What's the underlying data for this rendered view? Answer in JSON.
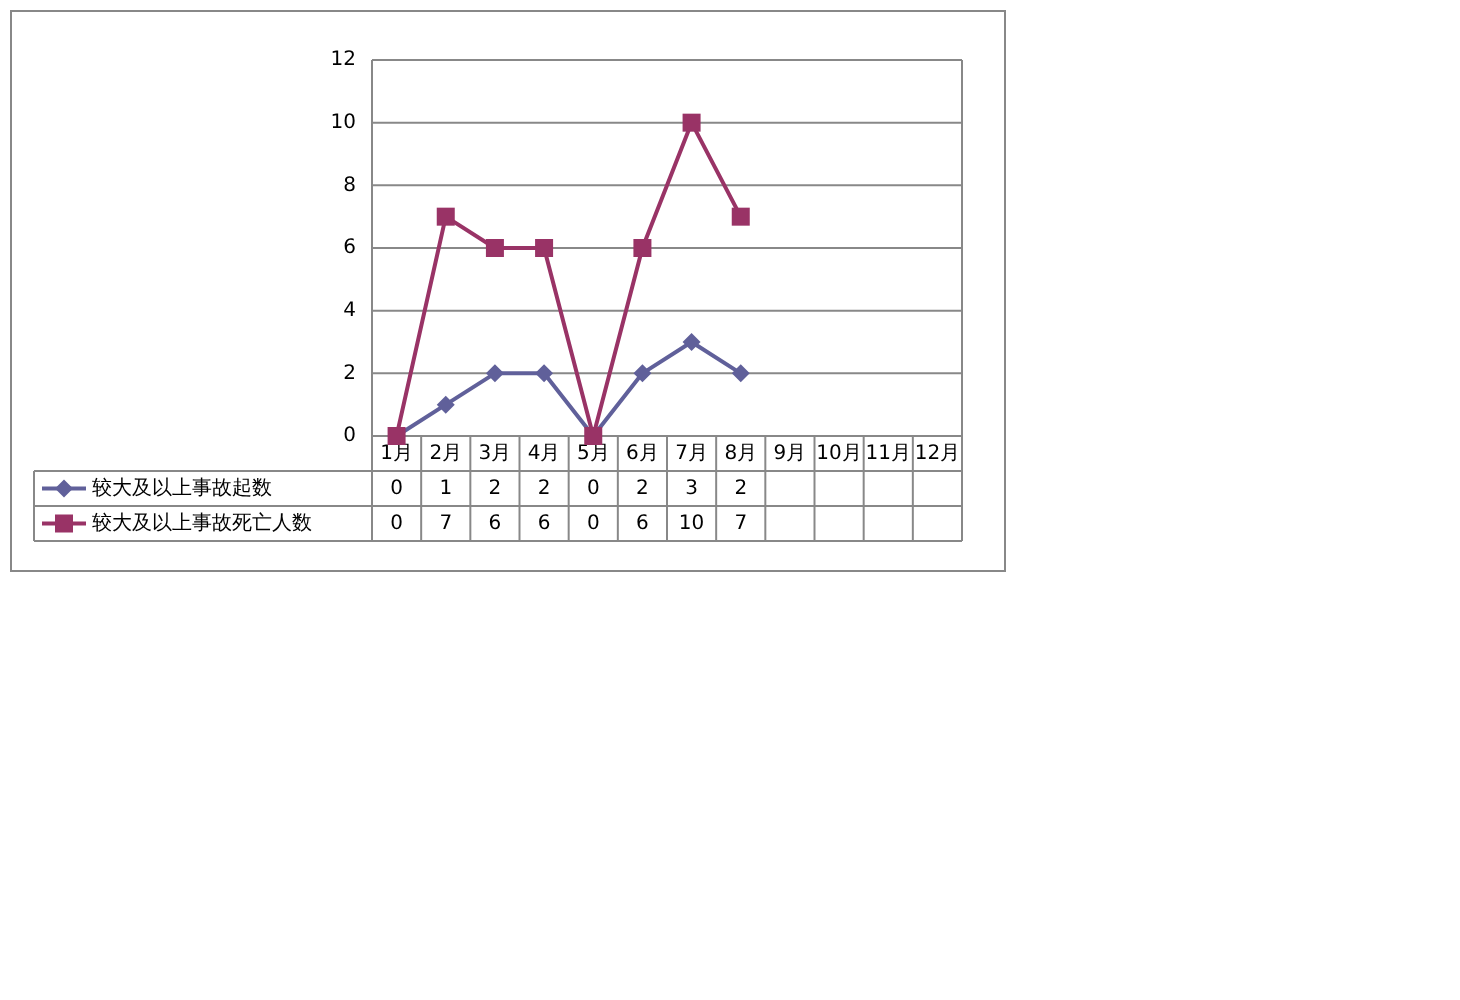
{
  "chart_data": {
    "type": "line",
    "categories": [
      "1月",
      "2月",
      "3月",
      "4月",
      "5月",
      "6月",
      "7月",
      "8月",
      "9月",
      "10月",
      "11月",
      "12月"
    ],
    "series": [
      {
        "name": "较大及以上事故起数",
        "color": "#60609a",
        "marker": "diamond",
        "values": [
          0,
          1,
          2,
          2,
          0,
          2,
          3,
          2,
          null,
          null,
          null,
          null
        ]
      },
      {
        "name": "较大及以上事故死亡人数",
        "color": "#993366",
        "marker": "square",
        "values": [
          0,
          7,
          6,
          6,
          0,
          6,
          10,
          7,
          null,
          null,
          null,
          null
        ]
      }
    ],
    "ylim": [
      0,
      12
    ],
    "yticks": [
      0,
      2,
      4,
      6,
      8,
      10,
      12
    ],
    "grid": "y",
    "data_labels": true,
    "legend": "bottom left"
  }
}
